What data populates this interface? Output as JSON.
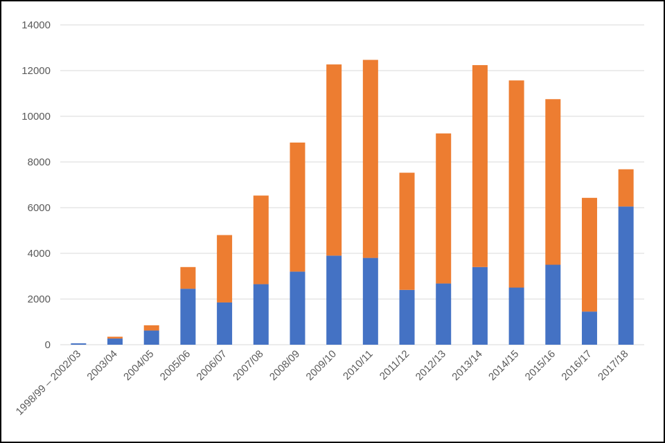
{
  "chart_data": {
    "type": "bar",
    "stacked": true,
    "categories": [
      "1998/99 – 2002/03",
      "2003/04",
      "2004/05",
      "2005/06",
      "2006/07",
      "2007/08",
      "2008/09",
      "2009/10",
      "2010/11",
      "2011/12",
      "2012/13",
      "2013/14",
      "2014/15",
      "2015/16",
      "2016/17",
      "2017/18"
    ],
    "series": [
      {
        "color": "#4472C4",
        "values": [
          60,
          270,
          620,
          2450,
          1850,
          2650,
          3200,
          3900,
          3800,
          2400,
          2680,
          3400,
          2500,
          3500,
          1450,
          6050
        ]
      },
      {
        "color": "#ED7D31",
        "values": [
          0,
          80,
          230,
          950,
          2950,
          3880,
          5650,
          8370,
          8670,
          5130,
          6570,
          8840,
          9070,
          7250,
          4980,
          1630
        ]
      }
    ],
    "ylim": [
      0,
      14000
    ],
    "yticks": [
      0,
      2000,
      4000,
      6000,
      8000,
      10000,
      12000,
      14000
    ],
    "grid": true,
    "legend": "none"
  }
}
